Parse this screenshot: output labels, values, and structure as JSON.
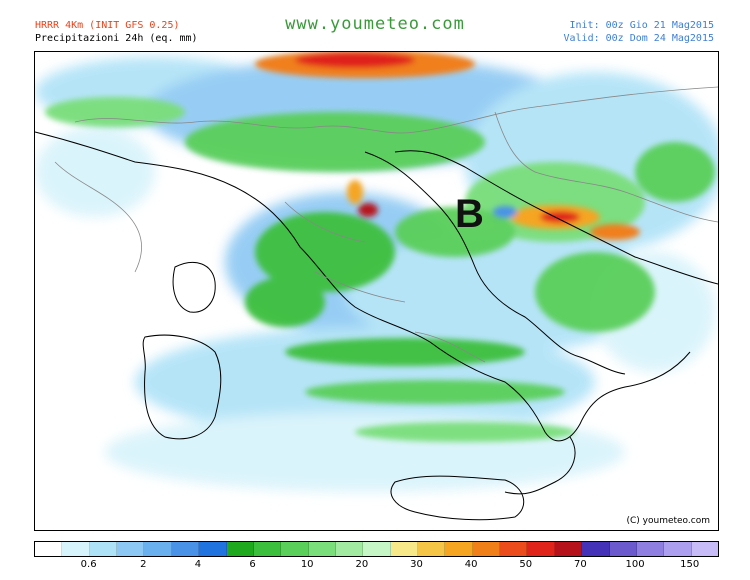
{
  "header": {
    "model": "HRRR 4Km (INIT GFS 0.25)",
    "product": "Precipitazioni 24h (eq. mm)",
    "site": "www.youmeteo.com",
    "init": "Init: 00z Gio  21 Mag2015",
    "valid": "Valid: 00z Dom 24 Mag2015"
  },
  "map": {
    "low_pressure_label": "B",
    "copyright": "(C) youmeteo.com"
  },
  "legend": {
    "colors": [
      "#ffffff",
      "#d7f3fb",
      "#aee2f7",
      "#8cc8f3",
      "#6ab0ee",
      "#4a92e8",
      "#2173e0",
      "#1fa91f",
      "#3cbf3c",
      "#5acf5a",
      "#7ade7a",
      "#a2eaa2",
      "#c6f5c6",
      "#f7e98a",
      "#f5c547",
      "#f5a522",
      "#f07f1a",
      "#ec4b1c",
      "#e0241c",
      "#b5121c",
      "#4433b8",
      "#6a5acd",
      "#8f7fe0",
      "#ad9ff0",
      "#c8bcf8"
    ],
    "labels": [
      {
        "text": "0.6",
        "index": 2
      },
      {
        "text": "2",
        "index": 4
      },
      {
        "text": "4",
        "index": 6
      },
      {
        "text": "6",
        "index": 8
      },
      {
        "text": "10",
        "index": 10
      },
      {
        "text": "20",
        "index": 12
      },
      {
        "text": "30",
        "index": 14
      },
      {
        "text": "40",
        "index": 16
      },
      {
        "text": "50",
        "index": 18
      },
      {
        "text": "70",
        "index": 20
      },
      {
        "text": "100",
        "index": 22
      },
      {
        "text": "150",
        "index": 24
      }
    ]
  }
}
